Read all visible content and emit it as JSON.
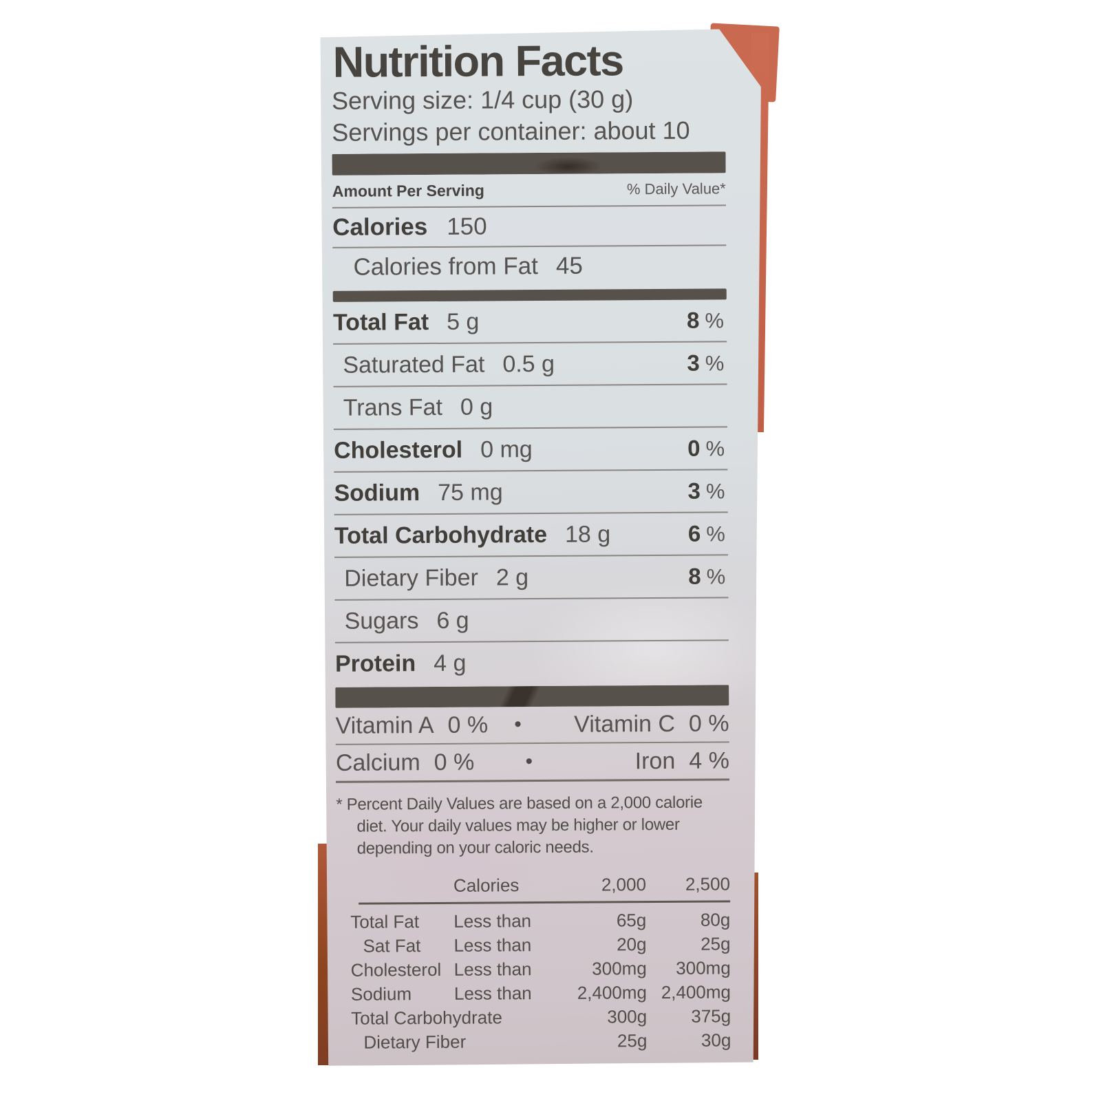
{
  "package": {
    "bag_color": "#c96a50"
  },
  "label": {
    "title": "Nutrition Facts",
    "serving_size": "Serving size: 1/4 cup (30 g)",
    "servings_per_container": "Servings per container: about 10",
    "amount_per_serving": "Amount Per Serving",
    "daily_value_header": "% Daily Value*",
    "percent_sign": "%",
    "vitamin_separator": "•",
    "calories": {
      "label": "Calories",
      "value": "150"
    },
    "calories_from_fat": {
      "label": "Calories from Fat",
      "value": "45"
    },
    "nutrients": [
      {
        "name": "Total Fat",
        "amount": "5 g",
        "dv": "8"
      },
      {
        "name": "Saturated Fat",
        "amount": "0.5 g",
        "dv": "3"
      },
      {
        "name": "Trans Fat",
        "amount": "0 g",
        "dv": ""
      },
      {
        "name": "Cholesterol",
        "amount": "0 mg",
        "dv": "0"
      },
      {
        "name": "Sodium",
        "amount": "75 mg",
        "dv": "3"
      },
      {
        "name": "Total Carbohydrate",
        "amount": "18 g",
        "dv": "6"
      },
      {
        "name": "Dietary Fiber",
        "amount": "2 g",
        "dv": "8"
      },
      {
        "name": "Sugars",
        "amount": "6 g",
        "dv": ""
      },
      {
        "name": "Protein",
        "amount": "4 g",
        "dv": ""
      }
    ],
    "vitamins": [
      {
        "left_name": "Vitamin A",
        "left_value": "0 %",
        "right_name": "Vitamin C",
        "right_value": "0 %"
      },
      {
        "left_name": "Calcium",
        "left_value": "0 %",
        "right_name": "Iron",
        "right_value": "4 %"
      }
    ],
    "footnote_lines": [
      "* Percent Daily Values are based on a 2,000 calorie",
      "diet. Your daily values may be higher or lower",
      "depending on your caloric needs."
    ],
    "reference_table": {
      "header": {
        "calories": "Calories",
        "col_2000": "2,000",
        "col_2500": "2,500"
      },
      "rows": [
        {
          "name": "Total Fat",
          "qualifier": "Less than",
          "v2000": "65g",
          "v2500": "80g"
        },
        {
          "name": "Sat Fat",
          "qualifier": "Less than",
          "v2000": "20g",
          "v2500": "25g"
        },
        {
          "name": "Cholesterol",
          "qualifier": "Less than",
          "v2000": "300mg",
          "v2500": "300mg"
        },
        {
          "name": "Sodium",
          "qualifier": "Less than",
          "v2000": "2,400mg",
          "v2500": "2,400mg"
        },
        {
          "name": "Total Carbohydrate",
          "qualifier": "",
          "v2000": "300g",
          "v2500": "375g"
        },
        {
          "name": "Dietary Fiber",
          "qualifier": "",
          "v2000": "25g",
          "v2500": "30g"
        }
      ]
    }
  }
}
